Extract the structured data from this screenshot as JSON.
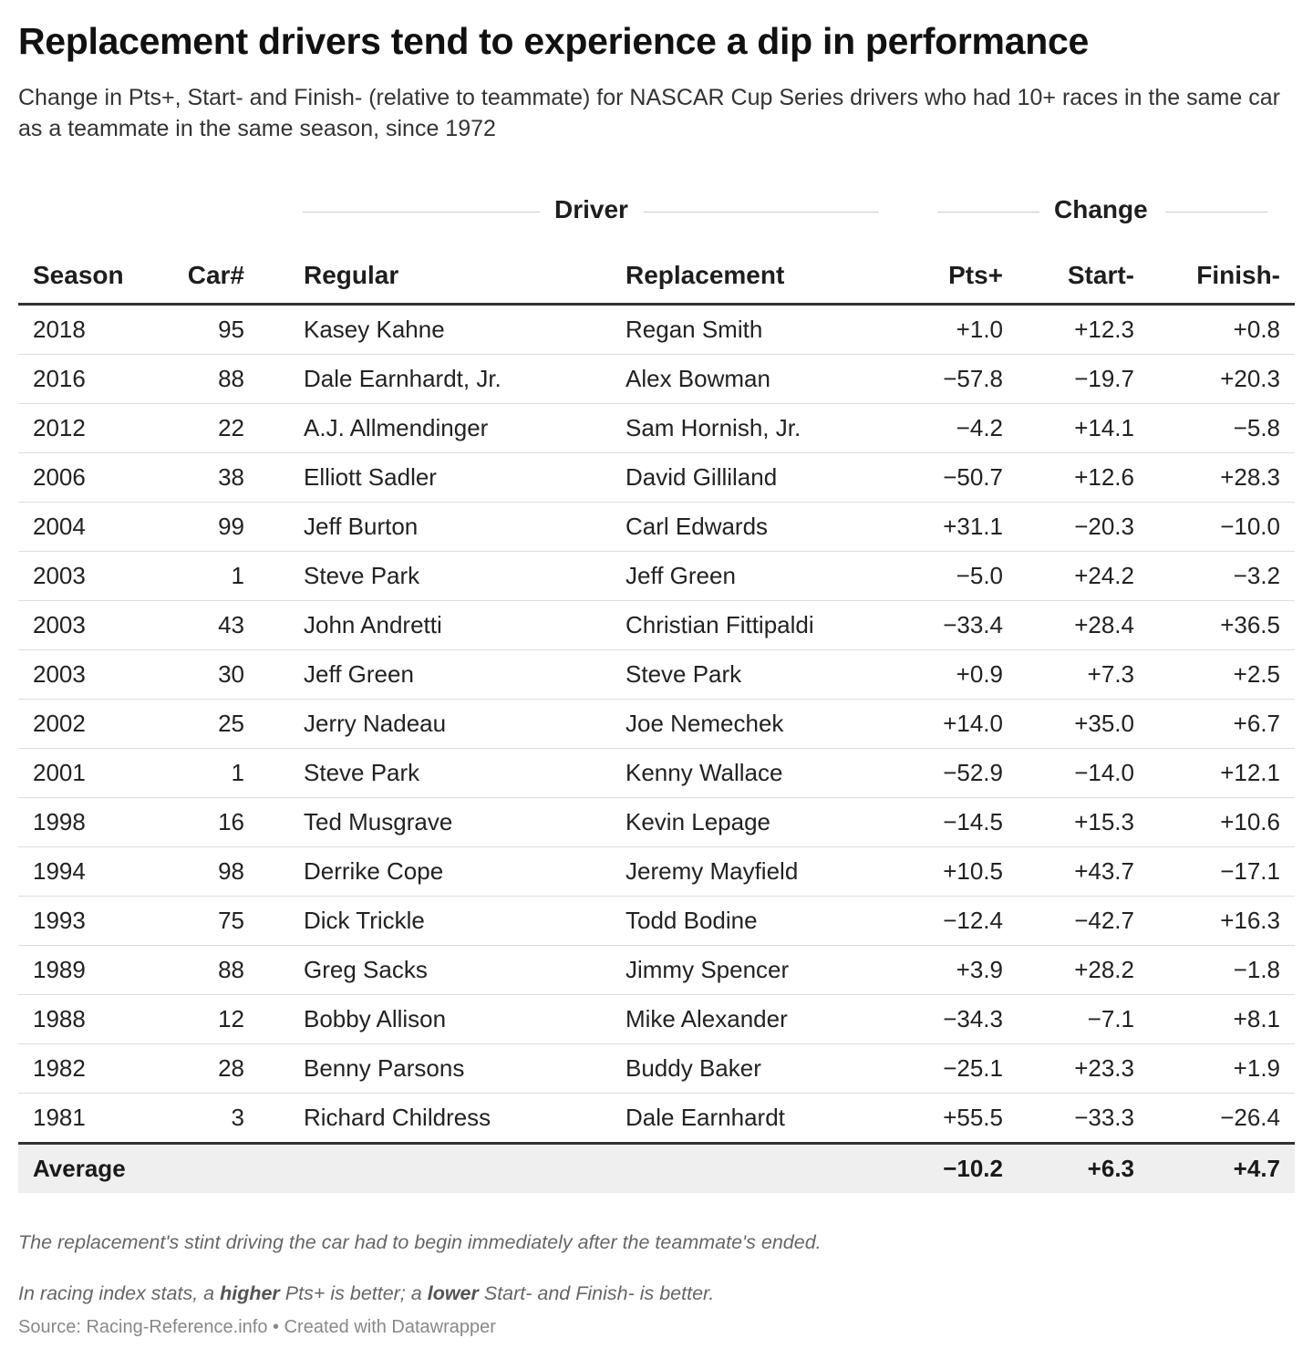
{
  "chart_data": {
    "type": "table",
    "title": "Replacement drivers tend to experience a dip in performance",
    "subtitle": "Change in Pts+, Start- and Finish- (relative to teammate) for NASCAR Cup Series drivers who had 10+ races in the same car as a teammate in the same season, since 1972",
    "column_groups": {
      "driver": "Driver",
      "change": "Change"
    },
    "columns": [
      "Season",
      "Car#",
      "Regular",
      "Replacement",
      "Pts+",
      "Start-",
      "Finish-"
    ],
    "rows": [
      [
        "2018",
        "95",
        "Kasey Kahne",
        "Regan Smith",
        "+1.0",
        "+12.3",
        "+0.8"
      ],
      [
        "2016",
        "88",
        "Dale Earnhardt, Jr.",
        "Alex Bowman",
        "−57.8",
        "−19.7",
        "+20.3"
      ],
      [
        "2012",
        "22",
        "A.J. Allmendinger",
        "Sam Hornish, Jr.",
        "−4.2",
        "+14.1",
        "−5.8"
      ],
      [
        "2006",
        "38",
        "Elliott Sadler",
        "David Gilliland",
        "−50.7",
        "+12.6",
        "+28.3"
      ],
      [
        "2004",
        "99",
        "Jeff Burton",
        "Carl Edwards",
        "+31.1",
        "−20.3",
        "−10.0"
      ],
      [
        "2003",
        "1",
        "Steve Park",
        "Jeff Green",
        "−5.0",
        "+24.2",
        "−3.2"
      ],
      [
        "2003",
        "43",
        "John Andretti",
        "Christian Fittipaldi",
        "−33.4",
        "+28.4",
        "+36.5"
      ],
      [
        "2003",
        "30",
        "Jeff Green",
        "Steve Park",
        "+0.9",
        "+7.3",
        "+2.5"
      ],
      [
        "2002",
        "25",
        "Jerry Nadeau",
        "Joe Nemechek",
        "+14.0",
        "+35.0",
        "+6.7"
      ],
      [
        "2001",
        "1",
        "Steve Park",
        "Kenny Wallace",
        "−52.9",
        "−14.0",
        "+12.1"
      ],
      [
        "1998",
        "16",
        "Ted Musgrave",
        "Kevin Lepage",
        "−14.5",
        "+15.3",
        "+10.6"
      ],
      [
        "1994",
        "98",
        "Derrike Cope",
        "Jeremy Mayfield",
        "+10.5",
        "+43.7",
        "−17.1"
      ],
      [
        "1993",
        "75",
        "Dick Trickle",
        "Todd Bodine",
        "−12.4",
        "−42.7",
        "+16.3"
      ],
      [
        "1989",
        "88",
        "Greg Sacks",
        "Jimmy Spencer",
        "+3.9",
        "+28.2",
        "−1.8"
      ],
      [
        "1988",
        "12",
        "Bobby Allison",
        "Mike Alexander",
        "−34.3",
        "−7.1",
        "+8.1"
      ],
      [
        "1982",
        "28",
        "Benny Parsons",
        "Buddy Baker",
        "−25.1",
        "+23.3",
        "+1.9"
      ],
      [
        "1981",
        "3",
        "Richard Childress",
        "Dale Earnhardt",
        "+55.5",
        "−33.3",
        "−26.4"
      ]
    ],
    "average": {
      "label": "Average",
      "pts": "−10.2",
      "start": "+6.3",
      "finish": "+4.7"
    }
  },
  "notes": {
    "note1": "The replacement's stint driving the car had to begin immediately after the teammate's ended.",
    "note2_a": "In racing index stats, a ",
    "note2_b": "higher",
    "note2_c": " Pts+ is better; a ",
    "note2_d": "lower",
    "note2_e": " Start- and Finish- is better."
  },
  "source": "Source: Racing-Reference.info • Created with Datawrapper",
  "colors": {
    "text": "#181818",
    "rule": "#333333",
    "row_divider": "#dddddd",
    "average_bg": "#efefef",
    "note": "#666666",
    "source": "#888888"
  }
}
